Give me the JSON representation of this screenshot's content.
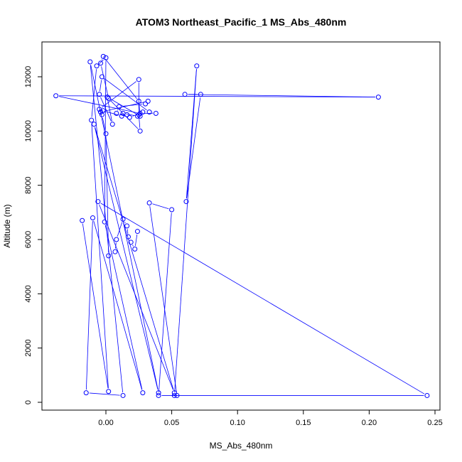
{
  "chart_data": {
    "type": "line",
    "title": "ATOM3 Northeast_Pacific_1 MS_Abs_480nm",
    "xlabel": "MS_Abs_480nm",
    "ylabel": "Altitude (m)",
    "xlim": [
      -0.04,
      0.25
    ],
    "ylim": [
      0,
      13000
    ],
    "xticks": [
      0.0,
      0.05,
      0.1,
      0.15,
      0.2,
      0.25
    ],
    "xtick_labels": [
      "0.00",
      "0.05",
      "0.10",
      "0.15",
      "0.20",
      "0.25"
    ],
    "yticks": [
      0,
      2000,
      4000,
      6000,
      8000,
      10000,
      12000
    ],
    "ytick_labels": [
      "0",
      "2000",
      "4000",
      "6000",
      "8000",
      "10000",
      "12000"
    ],
    "grid": false,
    "legend": "none",
    "marker": "open-circle",
    "color": "#0000ff",
    "series": [
      {
        "x": [
          0.024,
          0.022,
          0.019,
          0.017,
          0.016,
          0.013,
          0.008,
          0.007,
          0.002,
          0.0,
          -0.003,
          -0.004,
          -0.002,
          0.012,
          0.016,
          0.013,
          0.024,
          0.028,
          0.018,
          0.008,
          0.01,
          0.03,
          0.032,
          -0.004,
          -0.005,
          0.025,
          0.025,
          0.026,
          0.002,
          -0.004,
          -0.002,
          0.025,
          0.026,
          0.001,
          0.005,
          -0.005,
          -0.003,
          0.033,
          0.038,
          0.026,
          -0.038,
          0.207,
          0.06,
          0.072,
          0.061,
          0.069,
          0.052,
          0.054,
          0.033,
          0.05,
          0.04,
          0.244,
          -0.006,
          0.052,
          -0.009,
          0.04,
          -0.012,
          0.013,
          -0.015,
          -0.01,
          0.028,
          -0.001,
          0.0,
          -0.007,
          -0.011,
          0.002,
          -0.018
        ],
        "y": [
          6300,
          5650,
          5900,
          6100,
          6500,
          6750,
          6000,
          5550,
          5400,
          9900,
          10600,
          10700,
          10750,
          10550,
          10600,
          10650,
          10550,
          10700,
          10500,
          10650,
          10900,
          11000,
          11100,
          10700,
          10800,
          11900,
          10600,
          10000,
          11200,
          12500,
          12750,
          11100,
          10550,
          11250,
          10250,
          11350,
          12000,
          10700,
          10650,
          10650,
          11300,
          11250,
          11350,
          11350,
          7400,
          12400,
          250,
          250,
          7350,
          7100,
          250,
          250,
          7400,
          350,
          10250,
          350,
          12550,
          250,
          350,
          6800,
          350,
          6650,
          12700,
          12400,
          10400,
          400,
          6700
        ]
      }
    ]
  }
}
